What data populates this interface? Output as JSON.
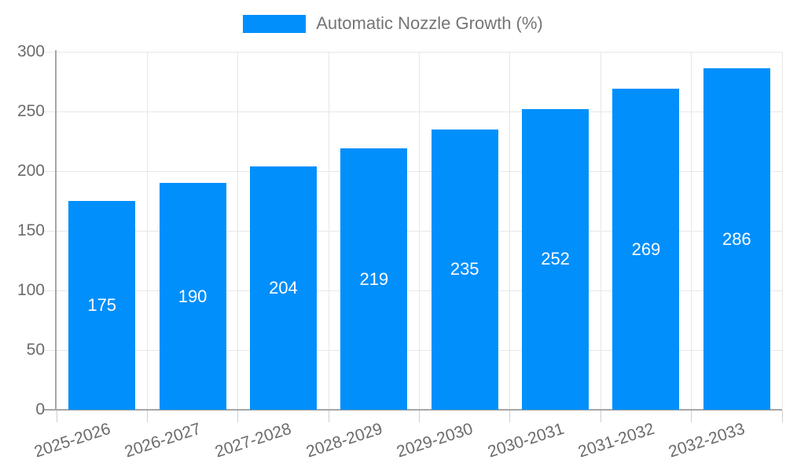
{
  "chart_data": {
    "type": "bar",
    "title": "",
    "legend": "Automatic Nozzle Growth (%)",
    "legend_position": "top",
    "categories": [
      "2025-2026",
      "2026-2027",
      "2027-2028",
      "2028-2029",
      "2029-2030",
      "2030-2031",
      "2031-2032",
      "2032-2033"
    ],
    "values": [
      175,
      190,
      204,
      219,
      235,
      252,
      269,
      286
    ],
    "xlabel": "",
    "ylabel": "",
    "ylim": [
      0,
      300
    ],
    "yticks": [
      0,
      50,
      100,
      150,
      200,
      250,
      300
    ],
    "grid": "horizontal and vertical gridlines on",
    "value_labels": "centered inside bars",
    "colors": {
      "bar": "#008FFB",
      "value_label": "#FFFFFF",
      "axis_label": "#6B6B6B",
      "legend_text": "#757575",
      "grid_line": "#E7E7E7",
      "axis_line": "#A6A6A6",
      "tick_mark": "#CFCFCF",
      "background": "#FFFFFF"
    }
  }
}
